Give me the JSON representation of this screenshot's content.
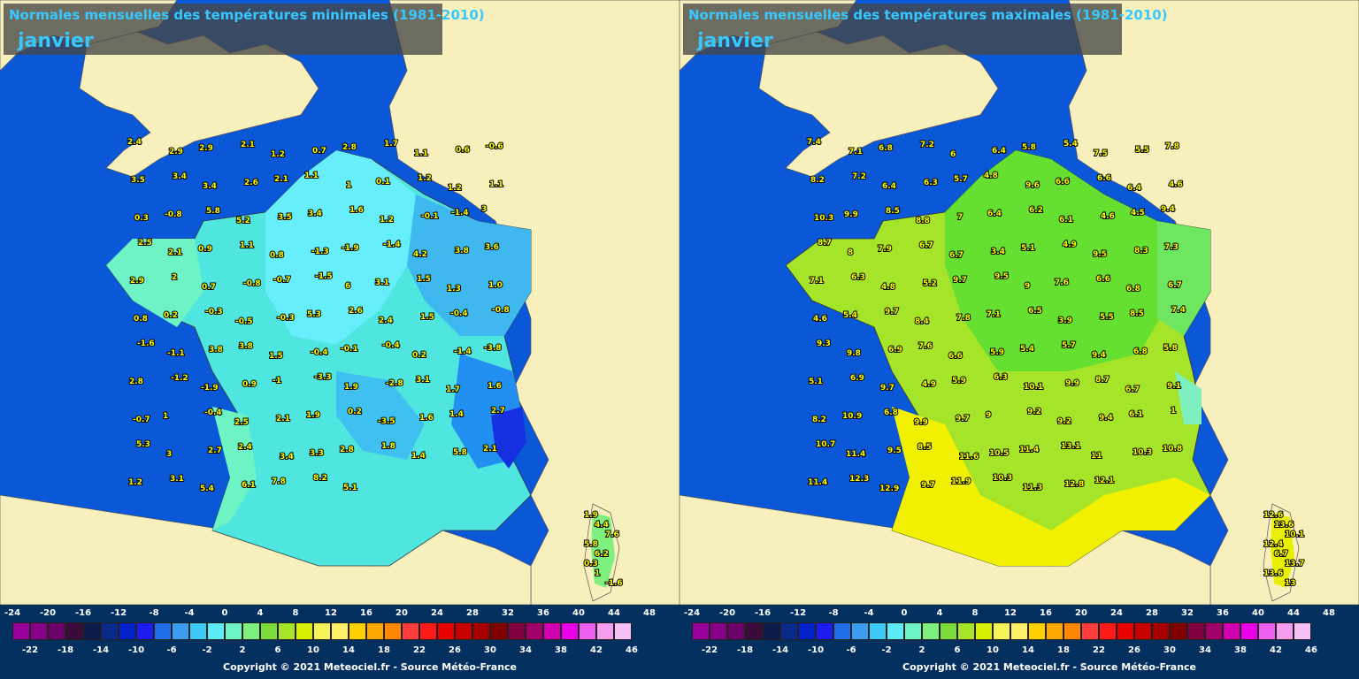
{
  "panels": [
    {
      "title": "Normales mensuelles des températures minimales (1981-2010)",
      "month": "janvier",
      "copyright": "Copyright © 2021 Meteociel.fr - Source Météo-France",
      "station_values": [
        "2.4",
        "2.9",
        "2.9",
        "2.1",
        "1.2",
        "0.7",
        "2.8",
        "1.7",
        "1.1",
        "0.6",
        "-0.6",
        "3.5",
        "3.4",
        "3.4",
        "2.6",
        "2.1",
        "1.1",
        "1",
        "0.1",
        "1.2",
        "1.2",
        "1.1",
        "0.3",
        "-0.8",
        "5.8",
        "5.2",
        "3.5",
        "3.4",
        "1.6",
        "1.2",
        "-0.1",
        "-1.4",
        "3",
        "2.5",
        "2.1",
        "0.9",
        "1.1",
        "0.8",
        "-1.3",
        "-1.9",
        "-1.4",
        "4.2",
        "3.8",
        "3.6",
        "2.9",
        "2",
        "0.7",
        "-0.8",
        "-0.7",
        "-1.5",
        "6",
        "3.1",
        "1.5",
        "1.3",
        "1.0",
        "0.8",
        "0.2",
        "-0.3",
        "-0.5",
        "-0.3",
        "5.3",
        "2.6",
        "2.4",
        "1.5",
        "-0.4",
        "-0.8",
        "-1.6",
        "-1.1",
        "3.8",
        "3.8",
        "1.5",
        "-0.4",
        "-0.1",
        "-0.4",
        "0.2",
        "-1.4",
        "-3.8",
        "2.8",
        "-1.2",
        "-1.9",
        "0.9",
        "-1",
        "-3.3",
        "1.9",
        "-2.8",
        "3.1",
        "1.7",
        "1.6",
        "-0.7",
        "1",
        "-0.4",
        "2.5",
        "2.1",
        "1.9",
        "0.2",
        "-3.5",
        "1.6",
        "1.4",
        "2.7",
        "5.3",
        "3",
        "2.7",
        "2.4",
        "3.4",
        "3.3",
        "2.8",
        "1.8",
        "1.4",
        "5.8",
        "2.1",
        "1.2",
        "3.1",
        "5.4",
        "6.1",
        "7.8",
        "8.2",
        "5.1",
        "0.3",
        "1",
        "-1.6",
        "1.9",
        "4.4",
        "7.6",
        "5.8",
        "6.2"
      ]
    },
    {
      "title": "Normales mensuelles des températures maximales (1981-2010)",
      "month": "janvier",
      "copyright": "Copyright © 2021 Meteociel.fr - Source Météo-France",
      "station_values": [
        "7.4",
        "7.1",
        "6.8",
        "7.2",
        "6",
        "6.4",
        "5.8",
        "5.4",
        "7.5",
        "5.5",
        "7.8",
        "8.2",
        "7.2",
        "6.4",
        "6.3",
        "5.7",
        "4.8",
        "9.6",
        "6.6",
        "6.6",
        "6.4",
        "4.6",
        "10.3",
        "9.9",
        "8.5",
        "8.8",
        "7",
        "6.4",
        "6.2",
        "6.1",
        "4.6",
        "4.5",
        "9.4",
        "8.7",
        "8",
        "7.9",
        "6.7",
        "6.7",
        "3.4",
        "5.1",
        "4.9",
        "9.5",
        "8.3",
        "7.3",
        "7.1",
        "6.3",
        "4.8",
        "5.2",
        "9.7",
        "9.5",
        "9",
        "7.6",
        "6.6",
        "6.8",
        "6.7",
        "4.6",
        "5.4",
        "9.7",
        "8.4",
        "7.8",
        "7.1",
        "6.5",
        "3.9",
        "5.5",
        "8.5",
        "7.4",
        "9.3",
        "9.8",
        "6.9",
        "7.6",
        "6.6",
        "5.9",
        "5.4",
        "5.7",
        "9.4",
        "6.8",
        "5.8",
        "5.1",
        "6.9",
        "9.7",
        "4.9",
        "5.9",
        "6.3",
        "10.1",
        "9.9",
        "8.7",
        "6.7",
        "9.1",
        "8.2",
        "10.9",
        "6.8",
        "9.9",
        "9.7",
        "9",
        "9.2",
        "9.2",
        "9.4",
        "6.1",
        "1",
        "10.7",
        "11.4",
        "9.5",
        "8.5",
        "11.6",
        "10.5",
        "11.4",
        "13.1",
        "11",
        "10.3",
        "10.8",
        "11.4",
        "12.3",
        "12.9",
        "9.7",
        "11.9",
        "10.3",
        "11.3",
        "12.8",
        "12.1",
        "13",
        "12.6",
        "13.6",
        "10.1",
        "12.4",
        "6.7",
        "13.7",
        "13.6"
      ]
    }
  ],
  "legend": {
    "top_ticks": [
      "-24",
      "-20",
      "-16",
      "-12",
      "-8",
      "-4",
      "0",
      "4",
      "8",
      "12",
      "16",
      "20",
      "24",
      "28",
      "32",
      "36",
      "40",
      "44",
      "48"
    ],
    "bottom_ticks": [
      "-22",
      "-18",
      "-14",
      "-10",
      "-6",
      "-2",
      "2",
      "6",
      "10",
      "14",
      "18",
      "22",
      "26",
      "30",
      "34",
      "38",
      "42",
      "46"
    ],
    "colors": [
      "#990099",
      "#880088",
      "#6b006b",
      "#3a0a3a",
      "#0b1b4b",
      "#0a2a8a",
      "#0022c8",
      "#1c1cf0",
      "#1f6fe8",
      "#3b9cf0",
      "#3ec8f5",
      "#5cecf5",
      "#6ef3c5",
      "#7ef07e",
      "#7cdc3c",
      "#a6e42a",
      "#d8f000",
      "#f5f55a",
      "#fff06a",
      "#ffd000",
      "#ffa800",
      "#ff8800",
      "#ff3c3c",
      "#ff1a1a",
      "#e60000",
      "#c80000",
      "#a80000",
      "#800000",
      "#800040",
      "#a0006a",
      "#d000b0",
      "#e800e8",
      "#f060f0",
      "#f59ef0",
      "#f5c0f5"
    ]
  }
}
